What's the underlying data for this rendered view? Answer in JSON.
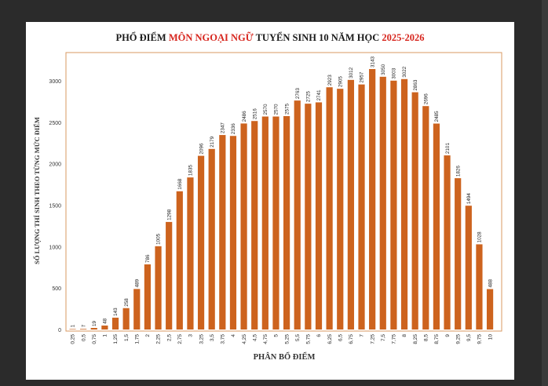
{
  "title_parts": [
    "PHỔ ĐIỂM ",
    "MÔN NGOẠI NGỮ",
    " TUYỂN SINH 10 NĂM HỌC ",
    "2025-2026"
  ],
  "colors": {
    "bar": "#cd631e",
    "frame": "#d99a62",
    "accent": "#d7261e",
    "text": "#1a1a1a"
  },
  "chart_data": {
    "type": "bar",
    "categories": [
      "0,25",
      "0,5",
      "0,75",
      "1",
      "1,25",
      "1,5",
      "1,75",
      "2",
      "2,25",
      "2,5",
      "2,75",
      "3",
      "3,25",
      "3,5",
      "3,75",
      "4",
      "4,25",
      "4,5",
      "4,75",
      "5",
      "5,25",
      "5,5",
      "5,75",
      "6",
      "6,25",
      "6,5",
      "6,75",
      "7",
      "7,25",
      "7,5",
      "7,75",
      "8",
      "8,25",
      "8,5",
      "8,75",
      "9",
      "9,25",
      "9,5",
      "9,75",
      "10"
    ],
    "values": [
      1,
      7,
      19,
      48,
      143,
      258,
      489,
      786,
      1005,
      1298,
      1668,
      1835,
      2096,
      2179,
      2347,
      2336,
      2486,
      2516,
      2570,
      2570,
      2575,
      2763,
      2725,
      2741,
      2923,
      2905,
      3012,
      2957,
      3143,
      3050,
      3003,
      3022,
      2863,
      2696,
      2485,
      2101,
      1826,
      1494,
      1028,
      488
    ],
    "title": "PHỔ ĐIỂM MÔN NGOẠI NGỮ TUYỂN SINH 10 NĂM HỌC 2025-2026",
    "xlabel": "PHÂN BỔ ĐIỂM",
    "ylabel": "SỐ LƯỢNG THÍ SINH THEO TỪNG MỨC ĐIỂM",
    "ylim": [
      0,
      3300
    ],
    "yticks": [
      0,
      500,
      1000,
      1500,
      2000,
      2500,
      3000
    ],
    "grid": false
  }
}
